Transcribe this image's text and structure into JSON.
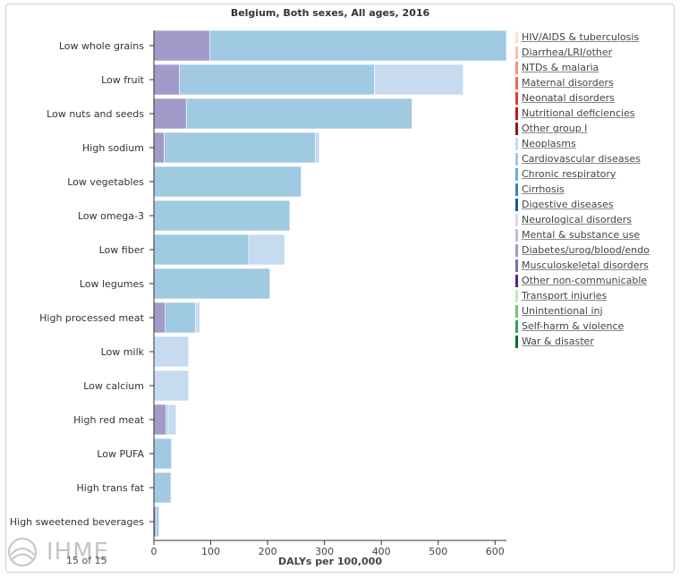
{
  "chart_data": {
    "type": "bar",
    "orientation": "horizontal-stacked",
    "title": "Belgium, Both sexes, All ages, 2016",
    "xlabel": "DALYs per 100,000",
    "xlim": [
      0,
      620
    ],
    "xticks": [
      0,
      100,
      200,
      300,
      400,
      500,
      600
    ],
    "categories": [
      "Low whole grains",
      "Low fruit",
      "Low nuts and seeds",
      "High sodium",
      "Low vegetables",
      "Low omega-3",
      "Low fiber",
      "Low legumes",
      "High processed meat",
      "Low milk",
      "Low calcium",
      "High red meat",
      "Low PUFA",
      "High trans fat",
      "High sweetened beverages"
    ],
    "series": [
      {
        "name": "Diabetes/urog/blood/endo",
        "color": "#a29bc9",
        "values": [
          98,
          45,
          57,
          18,
          0,
          0,
          0,
          0,
          20,
          0,
          0,
          21,
          0,
          0,
          4
        ]
      },
      {
        "name": "Cardiovascular diseases",
        "color": "#9fcae1",
        "values": [
          522,
          343,
          397,
          266,
          259,
          239,
          167,
          204,
          53,
          0,
          0,
          4,
          31,
          30,
          5
        ]
      },
      {
        "name": "Neoplasms",
        "color": "#c6dbef",
        "values": [
          0,
          156,
          0,
          7,
          0,
          0,
          63,
          0,
          8,
          61,
          61,
          14,
          0,
          0,
          0
        ]
      }
    ],
    "legend_position": "right"
  },
  "legend": [
    {
      "label": "HIV/AIDS & tuberculosis",
      "color": "#fde4d2"
    },
    {
      "label": "Diarrhea/LRI/other",
      "color": "#fbbfa6"
    },
    {
      "label": "NTDs & malaria",
      "color": "#f6917a"
    },
    {
      "label": "Maternal disorders",
      "color": "#ee6a50"
    },
    {
      "label": "Neonatal disorders",
      "color": "#dd3b2b"
    },
    {
      "label": "Nutritional deficiencies",
      "color": "#b71c1c"
    },
    {
      "label": "Other group I",
      "color": "#8b1a1a"
    },
    {
      "label": "Neoplasms",
      "color": "#c6dbef"
    },
    {
      "label": "Cardiovascular diseases",
      "color": "#9fcae1"
    },
    {
      "label": "Chronic respiratory",
      "color": "#6aaed6"
    },
    {
      "label": "Cirrhosis",
      "color": "#3787c0"
    },
    {
      "label": "Digestive diseases",
      "color": "#105ba4"
    },
    {
      "label": "Neurological disorders",
      "color": "#dadaeb"
    },
    {
      "label": "Mental & substance use",
      "color": "#bcbddc"
    },
    {
      "label": "Diabetes/urog/blood/endo",
      "color": "#a29bc9"
    },
    {
      "label": "Musculoskeletal disorders",
      "color": "#7b6fb3"
    },
    {
      "label": "Other non-communicable",
      "color": "#54278f"
    },
    {
      "label": "Transport injuries",
      "color": "#c7e9c0"
    },
    {
      "label": "Unintentional inj",
      "color": "#74c476"
    },
    {
      "label": "Self-harm & violence",
      "color": "#31a354"
    },
    {
      "label": "War & disaster",
      "color": "#006d2c"
    }
  ],
  "branding": {
    "logo": "IHME",
    "page": "15 of 15"
  }
}
